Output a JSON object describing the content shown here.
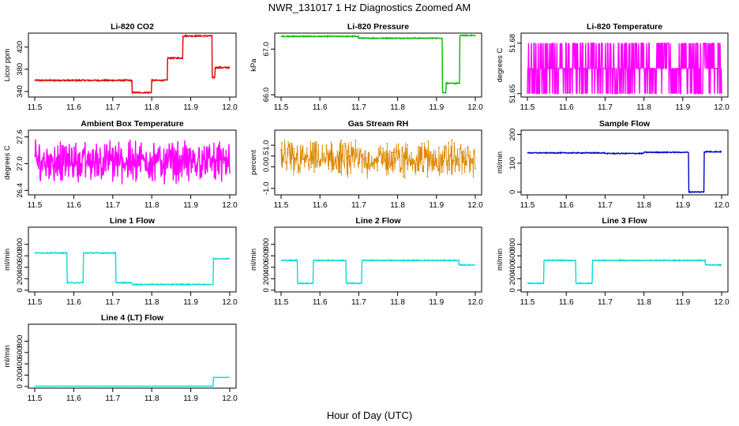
{
  "title": "NWR_131017  1 Hz Diagnostics Zoomed AM",
  "xlabel": "Hour of Day (UTC)",
  "chart_data": [
    {
      "type": "line",
      "title": "Li-820 CO2",
      "ylabel": "Licor ppm",
      "color": "#dd0000",
      "xlim": [
        11.5,
        12.0
      ],
      "ylim": [
        330,
        445
      ],
      "yticks": [
        "340",
        "380",
        "420"
      ],
      "ytick_values": [
        340,
        380,
        420
      ],
      "xticks": [
        "11.5",
        "11.6",
        "11.7",
        "11.8",
        "11.9",
        "12.0"
      ],
      "steps": [
        [
          11.5,
          11.75,
          360
        ],
        [
          11.75,
          11.8,
          338
        ],
        [
          11.8,
          11.84,
          360
        ],
        [
          11.84,
          11.88,
          400
        ],
        [
          11.88,
          11.955,
          440
        ],
        [
          11.955,
          11.962,
          365
        ],
        [
          11.962,
          12.0,
          383
        ]
      ],
      "noise": 1.2
    },
    {
      "type": "line",
      "title": "Li-820 Pressure",
      "ylabel": "kPa",
      "color": "#00bb00",
      "xlim": [
        11.5,
        12.0
      ],
      "ylim": [
        65.95,
        67.35
      ],
      "yticks": [
        "66.0",
        "67.0"
      ],
      "ytick_values": [
        66.0,
        67.0
      ],
      "xticks": [
        "11.5",
        "11.6",
        "11.7",
        "11.8",
        "11.9",
        "12.0"
      ],
      "steps": [
        [
          11.5,
          11.7,
          67.28
        ],
        [
          11.7,
          11.915,
          67.24
        ],
        [
          11.915,
          11.925,
          66.05
        ],
        [
          11.925,
          11.96,
          66.25
        ],
        [
          11.96,
          12.0,
          67.3
        ]
      ],
      "noise": 0.01
    },
    {
      "type": "line",
      "title": "Li-820 Temperature",
      "ylabel": "degrees C",
      "color": "#ff00ff",
      "xlim": [
        11.5,
        12.0
      ],
      "ylim": [
        51.648,
        51.686
      ],
      "yticks": [
        "51.65",
        "51.68"
      ],
      "ytick_values": [
        51.65,
        51.68
      ],
      "xticks": [
        "11.5",
        "11.6",
        "11.7",
        "11.8",
        "11.9",
        "12.0"
      ],
      "levels": [
        51.65,
        51.665,
        51.68
      ],
      "pattern": "toggle"
    },
    {
      "type": "line",
      "title": "Ambient Box Temperature",
      "ylabel": "degrees C",
      "color": "#ff00ff",
      "xlim": [
        11.5,
        12.0
      ],
      "ylim": [
        26.3,
        27.75
      ],
      "yticks": [
        "26.4",
        "27.0",
        "27.6"
      ],
      "ytick_values": [
        26.4,
        27.0,
        27.6
      ],
      "xticks": [
        "11.5",
        "11.6",
        "11.7",
        "11.8",
        "11.9",
        "12.0"
      ],
      "center": 27.05,
      "spread": 0.55,
      "pattern": "noise"
    },
    {
      "type": "scatter",
      "title": "Gas Stream RH",
      "ylabel": "percent",
      "color": "#dd8800",
      "xlim": [
        11.5,
        12.0
      ],
      "ylim": [
        -1.3,
        1.7
      ],
      "yticks": [
        "-1.0",
        "0.0",
        "0.5",
        "1.0"
      ],
      "ytick_values": [
        -1.0,
        0.0,
        0.5,
        1.0
      ],
      "xticks": [
        "11.5",
        "11.6",
        "11.7",
        "11.8",
        "11.9",
        "12.0"
      ],
      "center": 0.35,
      "spread": 1.0,
      "pattern": "noise"
    },
    {
      "type": "line",
      "title": "Sample Flow",
      "ylabel": "ml/min",
      "color": "#0000cc",
      "xlim": [
        11.5,
        12.0
      ],
      "ylim": [
        -10,
        215
      ],
      "yticks": [
        "0",
        "100",
        "200"
      ],
      "ytick_values": [
        0,
        100,
        200
      ],
      "xticks": [
        "11.5",
        "11.6",
        "11.7",
        "11.8",
        "11.9",
        "12.0"
      ],
      "steps": [
        [
          11.5,
          11.7,
          136
        ],
        [
          11.7,
          11.8,
          134
        ],
        [
          11.8,
          11.915,
          138
        ],
        [
          11.915,
          11.955,
          0
        ],
        [
          11.955,
          12.0,
          140
        ]
      ],
      "noise": 1.5
    },
    {
      "type": "line",
      "title": "Line 1 Flow",
      "ylabel": "ml/min",
      "color": "#00dddd",
      "xlim": [
        11.5,
        12.0
      ],
      "ylim": [
        -30,
        1100
      ],
      "yticks": [
        "0",
        "200",
        "400",
        "600",
        "800"
      ],
      "ytick_values": [
        0,
        200,
        400,
        600,
        800
      ],
      "xticks": [
        "11.5",
        "11.6",
        "11.7",
        "11.8",
        "11.9",
        "12.0"
      ],
      "steps": [
        [
          11.5,
          11.583,
          650
        ],
        [
          11.583,
          11.625,
          130
        ],
        [
          11.625,
          11.708,
          650
        ],
        [
          11.708,
          11.75,
          130
        ],
        [
          11.75,
          11.958,
          100
        ],
        [
          11.958,
          12.0,
          550
        ]
      ],
      "noise": 8
    },
    {
      "type": "line",
      "title": "Line 2 Flow",
      "ylabel": "ml/min",
      "color": "#00dddd",
      "xlim": [
        11.5,
        12.0
      ],
      "ylim": [
        -30,
        1100
      ],
      "yticks": [
        "0",
        "200",
        "400",
        "600",
        "800"
      ],
      "ytick_values": [
        0,
        200,
        400,
        600,
        800
      ],
      "xticks": [
        "11.5",
        "11.6",
        "11.7",
        "11.8",
        "11.9",
        "12.0"
      ],
      "steps": [
        [
          11.5,
          11.542,
          520
        ],
        [
          11.542,
          11.583,
          120
        ],
        [
          11.583,
          11.667,
          520
        ],
        [
          11.667,
          11.708,
          120
        ],
        [
          11.708,
          11.958,
          520
        ],
        [
          11.958,
          12.0,
          440
        ]
      ],
      "noise": 8
    },
    {
      "type": "line",
      "title": "Line 3 Flow",
      "ylabel": "ml/min",
      "color": "#00dddd",
      "xlim": [
        11.5,
        12.0
      ],
      "ylim": [
        -30,
        1100
      ],
      "yticks": [
        "0",
        "200",
        "400",
        "600",
        "800"
      ],
      "ytick_values": [
        0,
        200,
        400,
        600,
        800
      ],
      "xticks": [
        "11.5",
        "11.6",
        "11.7",
        "11.8",
        "11.9",
        "12.0"
      ],
      "steps": [
        [
          11.5,
          11.542,
          120
        ],
        [
          11.542,
          11.625,
          520
        ],
        [
          11.625,
          11.667,
          120
        ],
        [
          11.667,
          11.958,
          520
        ],
        [
          11.958,
          12.0,
          440
        ]
      ],
      "noise": 8
    },
    {
      "type": "line",
      "title": "Line 4 (LT) Flow",
      "ylabel": "ml/min",
      "color": "#00dddd",
      "xlim": [
        11.5,
        12.0
      ],
      "ylim": [
        -30,
        1100
      ],
      "yticks": [
        "0",
        "200",
        "400",
        "600",
        "800"
      ],
      "ytick_values": [
        0,
        200,
        400,
        600,
        800
      ],
      "xticks": [
        "11.5",
        "11.6",
        "11.7",
        "11.8",
        "11.9",
        "12.0"
      ],
      "steps": [
        [
          11.5,
          11.958,
          5
        ],
        [
          11.958,
          12.0,
          160
        ]
      ],
      "noise": 2
    }
  ]
}
